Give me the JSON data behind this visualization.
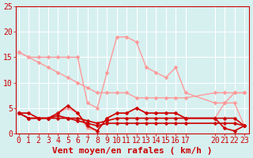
{
  "background_color": "#d6f0f0",
  "grid_color": "#ffffff",
  "x_ticks": [
    0,
    1,
    2,
    3,
    4,
    5,
    6,
    7,
    8,
    9,
    10,
    11,
    12,
    13,
    14,
    15,
    16,
    17,
    20,
    21,
    22,
    23
  ],
  "ylim": [
    0,
    25
  ],
  "yticks": [
    0,
    5,
    10,
    15,
    20,
    25
  ],
  "xlabel": "Vent moyen/en rafales ( km/h )",
  "tick_color": "#cc0000",
  "series": [
    {
      "x": [
        0,
        1,
        2,
        3,
        4,
        5,
        6,
        7,
        8,
        9,
        10,
        11,
        12,
        13,
        14,
        15,
        16,
        17,
        20,
        21,
        22,
        23
      ],
      "y": [
        16,
        15,
        15,
        15,
        15,
        15,
        15,
        6,
        5,
        12,
        19,
        19,
        18,
        13,
        12,
        11,
        13,
        8,
        6,
        6,
        8,
        8
      ],
      "color": "#ff9999",
      "lw": 1.0,
      "ms": 2.5
    },
    {
      "x": [
        0,
        1,
        2,
        3,
        4,
        5,
        6,
        7,
        8,
        9,
        10,
        11,
        12,
        13,
        14,
        15,
        16,
        17,
        20,
        21,
        22,
        23
      ],
      "y": [
        16,
        15,
        14,
        13,
        12,
        11,
        10,
        9,
        8,
        8,
        8,
        8,
        7,
        7,
        7,
        7,
        7,
        7,
        8,
        8,
        8,
        8
      ],
      "color": "#ff9999",
      "lw": 1.0,
      "ms": 2.5
    },
    {
      "x": [
        0,
        1,
        2,
        3,
        4,
        5,
        6,
        7,
        8,
        9,
        10,
        11,
        12,
        13,
        14,
        15,
        16,
        17,
        20,
        21,
        22,
        23
      ],
      "y": [
        4,
        4,
        3,
        3,
        4,
        5,
        4,
        1,
        0.5,
        3,
        4,
        4,
        5,
        4,
        4,
        4,
        4,
        3,
        3,
        6,
        6,
        1.5
      ],
      "color": "#ff9999",
      "lw": 1.0,
      "ms": 2.5
    },
    {
      "x": [
        0,
        1,
        2,
        3,
        4,
        5,
        6,
        7,
        8,
        9,
        10,
        11,
        12,
        13,
        14,
        15,
        16,
        17,
        20,
        21,
        22,
        23
      ],
      "y": [
        4,
        4,
        3,
        3,
        4,
        5.5,
        4,
        1.5,
        0.5,
        3,
        4,
        4,
        5,
        4,
        4,
        4,
        4,
        3,
        3,
        1,
        0.5,
        1.5
      ],
      "color": "#cc0000",
      "lw": 1.2,
      "ms": 2.5
    },
    {
      "x": [
        0,
        1,
        2,
        3,
        4,
        5,
        6,
        7,
        8,
        9,
        10,
        11,
        12,
        13,
        14,
        15,
        16,
        17,
        20,
        21,
        22,
        23
      ],
      "y": [
        4,
        3,
        3,
        3,
        3.5,
        3,
        3,
        2.5,
        2,
        2.5,
        3,
        3,
        3,
        3,
        3,
        3,
        3,
        3,
        3,
        3,
        3,
        1.5
      ],
      "color": "#cc0000",
      "lw": 1.2,
      "ms": 2.5
    },
    {
      "x": [
        0,
        1,
        2,
        3,
        4,
        5,
        6,
        7,
        8,
        9,
        10,
        11,
        12,
        13,
        14,
        15,
        16,
        17,
        20,
        21,
        22,
        23
      ],
      "y": [
        4,
        3,
        3,
        3,
        3,
        3,
        2.5,
        2,
        1.5,
        2,
        2,
        2,
        2,
        2,
        2,
        2,
        2,
        2,
        2,
        2,
        2,
        1.5
      ],
      "color": "#cc0000",
      "lw": 1.2,
      "ms": 2.5
    }
  ],
  "tick_fontsize": 7,
  "label_fontsize": 8
}
